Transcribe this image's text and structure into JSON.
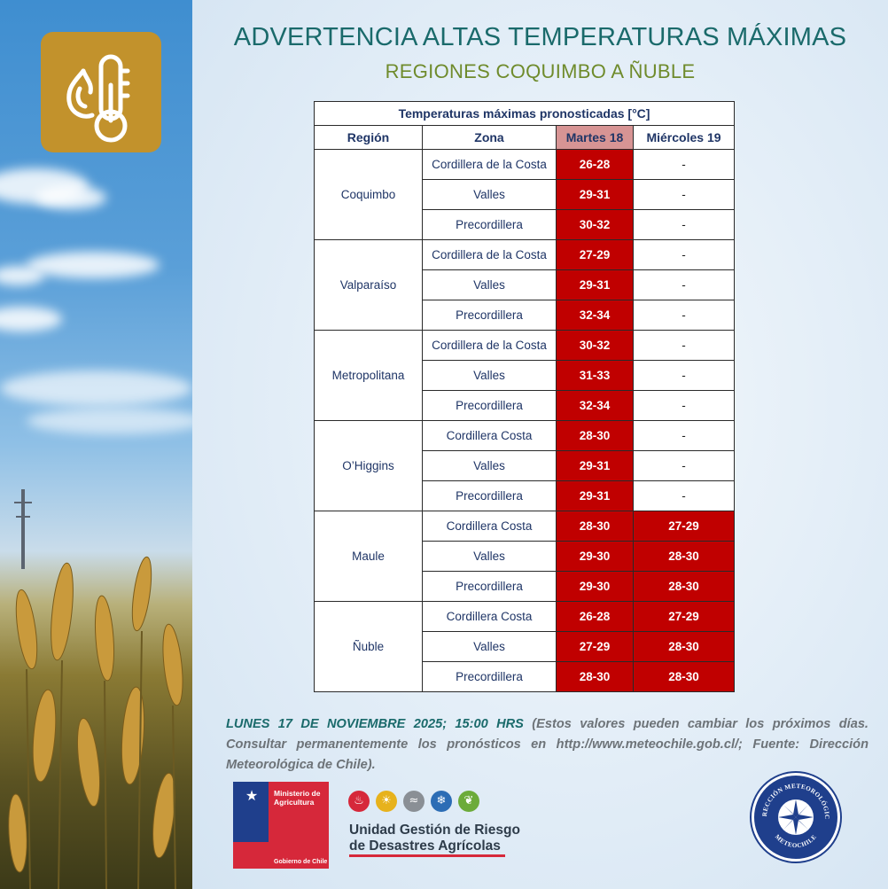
{
  "header": {
    "title": "ADVERTENCIA ALTAS TEMPERATURAS MÁXIMAS",
    "subtitle": "REGIONES COQUIMBO A ÑUBLE",
    "badge_icon": "fire-thermometer-icon",
    "badge_color": "#c2922c"
  },
  "table": {
    "caption": "Temperaturas máximas pronosticadas [°C]",
    "headers": {
      "region": "Región",
      "zone": "Zona",
      "day1": "Martes 18",
      "day2": "Miércoles 19"
    },
    "alert_color": "#c00000",
    "regions": [
      {
        "name": "Coquimbo",
        "rows": [
          {
            "zone": "Cordillera de la Costa",
            "day1": "26-28",
            "day2": "-"
          },
          {
            "zone": "Valles",
            "day1": "29-31",
            "day2": "-"
          },
          {
            "zone": "Precordillera",
            "day1": "30-32",
            "day2": "-"
          }
        ]
      },
      {
        "name": "Valparaíso",
        "rows": [
          {
            "zone": "Cordillera de la Costa",
            "day1": "27-29",
            "day2": "-"
          },
          {
            "zone": "Valles",
            "day1": "29-31",
            "day2": "-"
          },
          {
            "zone": "Precordillera",
            "day1": "32-34",
            "day2": "-"
          }
        ]
      },
      {
        "name": "Metropolitana",
        "rows": [
          {
            "zone": "Cordillera de la Costa",
            "day1": "30-32",
            "day2": "-"
          },
          {
            "zone": "Valles",
            "day1": "31-33",
            "day2": "-"
          },
          {
            "zone": "Precordillera",
            "day1": "32-34",
            "day2": "-"
          }
        ]
      },
      {
        "name": "O’Higgins",
        "rows": [
          {
            "zone": "Cordillera Costa",
            "day1": "28-30",
            "day2": "-"
          },
          {
            "zone": "Valles",
            "day1": "29-31",
            "day2": "-"
          },
          {
            "zone": "Precordillera",
            "day1": "29-31",
            "day2": "-"
          }
        ]
      },
      {
        "name": "Maule",
        "rows": [
          {
            "zone": "Cordillera Costa",
            "day1": "28-30",
            "day2": "27-29"
          },
          {
            "zone": "Valles",
            "day1": "29-30",
            "day2": "28-30"
          },
          {
            "zone": "Precordillera",
            "day1": "29-30",
            "day2": "28-30"
          }
        ]
      },
      {
        "name": "Ñuble",
        "rows": [
          {
            "zone": "Cordillera Costa",
            "day1": "26-28",
            "day2": "27-29"
          },
          {
            "zone": "Valles",
            "day1": "27-29",
            "day2": "28-30"
          },
          {
            "zone": "Precordillera",
            "day1": "28-30",
            "day2": "28-30"
          }
        ]
      }
    ]
  },
  "footer": {
    "date": "LUNES 17 DE NOVIEMBRE 2025; 15:00 HRS",
    "note": " (Estos valores pueden cambiar los próximos días. Consultar permanentemente los pronósticos en http://www.meteochile.gob.cl/; Fuente: Dirección Meteorológica de Chile)."
  },
  "logos": {
    "ministry": {
      "line1": "Ministerio de",
      "line2": "Agricultura",
      "gov": "Gobierno de Chile"
    },
    "ugr": {
      "title_line1": "Unidad Gestión de Riesgo",
      "title_line2": "de Desastres Agrícolas",
      "icons": [
        {
          "name": "fire-icon",
          "color": "#d6283a",
          "glyph": "♨"
        },
        {
          "name": "drought-icon",
          "color": "#e7b21c",
          "glyph": "☀"
        },
        {
          "name": "flood-icon",
          "color": "#8a8f95",
          "glyph": "≈"
        },
        {
          "name": "frost-icon",
          "color": "#2c6db5",
          "glyph": "❄"
        },
        {
          "name": "plant-icon",
          "color": "#6cab3a",
          "glyph": "❦"
        }
      ]
    },
    "meteochile": {
      "top_text": "DIRECCIÓN METEOROLÓGICA",
      "bottom_text": "METEOCHILE"
    }
  }
}
